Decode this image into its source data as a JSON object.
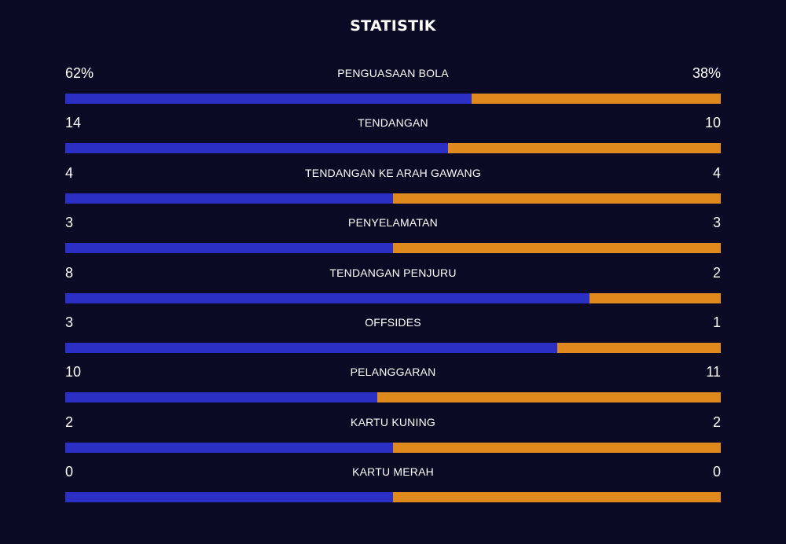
{
  "title": "STATISTIK",
  "colors": {
    "background": "#0a0a24",
    "home": "#2b2fc4",
    "away": "#e08a1e"
  },
  "stats": [
    {
      "label": "PENGUASAAN BOLA",
      "home": "62%",
      "away": "38%",
      "home_value": 62,
      "away_value": 38
    },
    {
      "label": "TENDANGAN",
      "home": "14",
      "away": "10",
      "home_value": 14,
      "away_value": 10
    },
    {
      "label": "TENDANGAN KE ARAH GAWANG",
      "home": "4",
      "away": "4",
      "home_value": 4,
      "away_value": 4
    },
    {
      "label": "PENYELAMATAN",
      "home": "3",
      "away": "3",
      "home_value": 3,
      "away_value": 3
    },
    {
      "label": "TENDANGAN PENJURU",
      "home": "8",
      "away": "2",
      "home_value": 8,
      "away_value": 2
    },
    {
      "label": "OFFSIDES",
      "home": "3",
      "away": "1",
      "home_value": 3,
      "away_value": 1
    },
    {
      "label": "PELANGGARAN",
      "home": "10",
      "away": "11",
      "home_value": 10,
      "away_value": 11
    },
    {
      "label": "KARTU KUNING",
      "home": "2",
      "away": "2",
      "home_value": 2,
      "away_value": 2
    },
    {
      "label": "KARTU MERAH",
      "home": "0",
      "away": "0",
      "home_value": 0,
      "away_value": 0
    }
  ]
}
